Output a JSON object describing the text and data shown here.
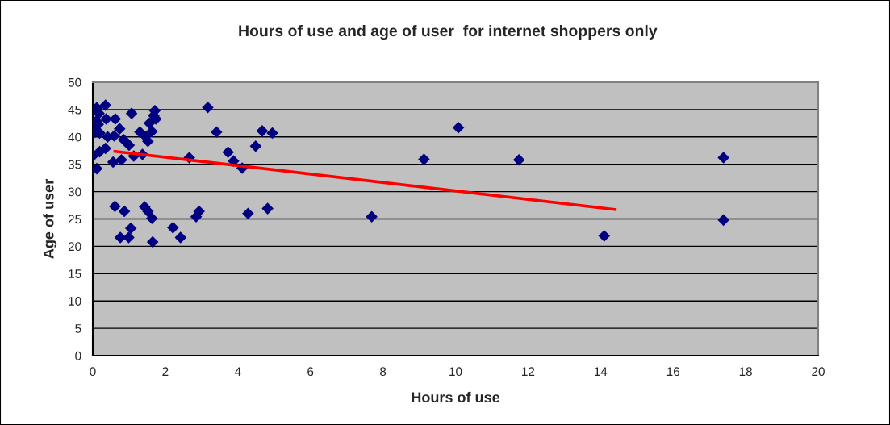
{
  "chart_data": {
    "type": "scatter",
    "title": "Hours of use and age of user  for internet shoppers only",
    "xlabel": "Hours of use",
    "ylabel": "Age of user",
    "xlim": [
      0,
      20
    ],
    "ylim": [
      0,
      50
    ],
    "xticks": [
      0,
      2,
      4,
      6,
      8,
      10,
      12,
      14,
      16,
      18,
      20
    ],
    "yticks": [
      0,
      5,
      10,
      15,
      20,
      25,
      30,
      35,
      40,
      45,
      50
    ],
    "grid": "y",
    "series": [
      {
        "color": "#000080",
        "marker": "diamond",
        "x": [
          0.11,
          0.35,
          0.17,
          0.1,
          0.37,
          0.62,
          0.15,
          0.74,
          0.07,
          0.19,
          0.41,
          0.59,
          1.07,
          1.71,
          1.68,
          1.74,
          1.56,
          1.63,
          1.3,
          1.45,
          1.52,
          0.85,
          1.0,
          0.35,
          0.19,
          0.0,
          0.11,
          0.56,
          0.79,
          1.13,
          1.37,
          0.61,
          0.87,
          1.43,
          1.52,
          1.63,
          1.05,
          0.76,
          0.99,
          1.65,
          2.21,
          2.42,
          3.17,
          3.41,
          4.67,
          4.95,
          4.49,
          3.73,
          2.66,
          3.88,
          4.12,
          2.93,
          2.85,
          4.28,
          4.82,
          10.08,
          9.13,
          11.75,
          17.39,
          7.69,
          14.1,
          17.39
        ],
        "values": [
          45.3,
          45.8,
          44.3,
          42.9,
          43.3,
          43.3,
          42.3,
          41.5,
          40.9,
          40.7,
          40.0,
          40.2,
          44.3,
          44.8,
          43.9,
          43.3,
          42.5,
          41.0,
          40.9,
          40.1,
          39.2,
          39.5,
          38.5,
          37.9,
          37.3,
          36.5,
          34.2,
          35.4,
          35.8,
          36.5,
          36.8,
          27.3,
          26.4,
          27.2,
          26.4,
          25.1,
          23.3,
          21.6,
          21.6,
          20.8,
          23.4,
          21.6,
          45.4,
          40.9,
          41.1,
          40.7,
          38.3,
          37.2,
          36.2,
          35.6,
          34.3,
          26.4,
          25.4,
          26.0,
          26.9,
          41.7,
          35.9,
          35.8,
          36.2,
          25.4,
          21.9,
          24.8
        ]
      },
      {
        "type": "line",
        "color": "#ff0000",
        "x": [
          0.57,
          14.44
        ],
        "values": [
          37.4,
          26.7
        ]
      }
    ]
  }
}
